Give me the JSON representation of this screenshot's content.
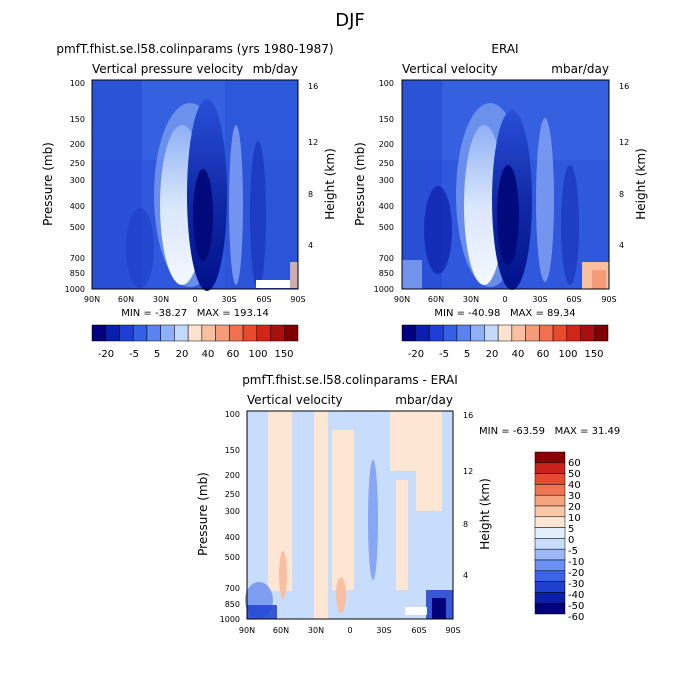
{
  "figure_title": "DJF",
  "colors": {
    "bar_scale": [
      "#000080",
      "#0a1fb0",
      "#1e3fd6",
      "#3560e6",
      "#5b82f0",
      "#8fb0f5",
      "#c4d9fb",
      "#fde3cf",
      "#f8c0a0",
      "#f59b78",
      "#f07050",
      "#e84a2e",
      "#d2251a",
      "#a80f0f",
      "#800000"
    ],
    "diff_scale": [
      "#00007a",
      "#0a20a8",
      "#1e3fd0",
      "#3b63ea",
      "#6b8ff3",
      "#9cb8f7",
      "#c8dcfb",
      "#e2edfd",
      "#fde6d3",
      "#fac7a8",
      "#f6a47e",
      "#f07552",
      "#e54a2c",
      "#c8221a",
      "#8b0000"
    ]
  },
  "chart_data": [
    {
      "id": "model",
      "type": "heatmap",
      "title": "pmfT.fhist.se.l58.colinparams (yrs 1980-1987)",
      "subtitle_left": "Vertical pressure velocity",
      "subtitle_right": "mb/day",
      "ylabel": "Pressure (mb)",
      "ylabel_right": "Height (km)",
      "x_ticks": [
        "90N",
        "60N",
        "30N",
        "0",
        "30S",
        "60S",
        "90S"
      ],
      "y_ticks": [
        100,
        150,
        200,
        250,
        300,
        400,
        500,
        700,
        850,
        1000
      ],
      "y_right_ticks": [
        16,
        12,
        8,
        4
      ],
      "min": -38.27,
      "max": 193.14,
      "stats_text": "MIN = -38.27   MAX = 193.14",
      "colorbar_labels": [
        "-20",
        "-5",
        "5",
        "20",
        "40",
        "60",
        "100",
        "150"
      ]
    },
    {
      "id": "obs",
      "type": "heatmap",
      "title": "ERAI",
      "subtitle_left": "Vertical velocity",
      "subtitle_right": "mbar/day",
      "ylabel": "Pressure (mb)",
      "ylabel_right": "Height (km)",
      "x_ticks": [
        "90N",
        "60N",
        "30N",
        "0",
        "30S",
        "60S",
        "90S"
      ],
      "y_ticks": [
        100,
        150,
        200,
        250,
        300,
        400,
        500,
        700,
        850,
        1000
      ],
      "y_right_ticks": [
        16,
        12,
        8,
        4
      ],
      "min": -40.98,
      "max": 89.34,
      "stats_text": "MIN = -40.98   MAX = 89.34",
      "colorbar_labels": [
        "-20",
        "-5",
        "5",
        "20",
        "40",
        "60",
        "100",
        "150"
      ]
    },
    {
      "id": "diff",
      "type": "heatmap",
      "title": "pmfT.fhist.se.l58.colinparams - ERAI",
      "subtitle_left": "Vertical velocity",
      "subtitle_right": "mbar/day",
      "ylabel": "Pressure (mb)",
      "ylabel_right": "Height (km)",
      "x_ticks": [
        "90N",
        "60N",
        "30N",
        "0",
        "30S",
        "60S",
        "90S"
      ],
      "y_ticks": [
        100,
        150,
        200,
        250,
        300,
        400,
        500,
        700,
        850,
        1000
      ],
      "y_right_ticks": [
        16,
        12,
        8,
        4
      ],
      "min": -63.59,
      "max": 31.49,
      "stats_text": "MIN = -63.59   MAX = 31.49",
      "colorbar_labels": [
        "60",
        "50",
        "40",
        "30",
        "20",
        "10",
        "5",
        "0",
        "-5",
        "-10",
        "-20",
        "-30",
        "-40",
        "-50",
        "-60"
      ]
    }
  ]
}
